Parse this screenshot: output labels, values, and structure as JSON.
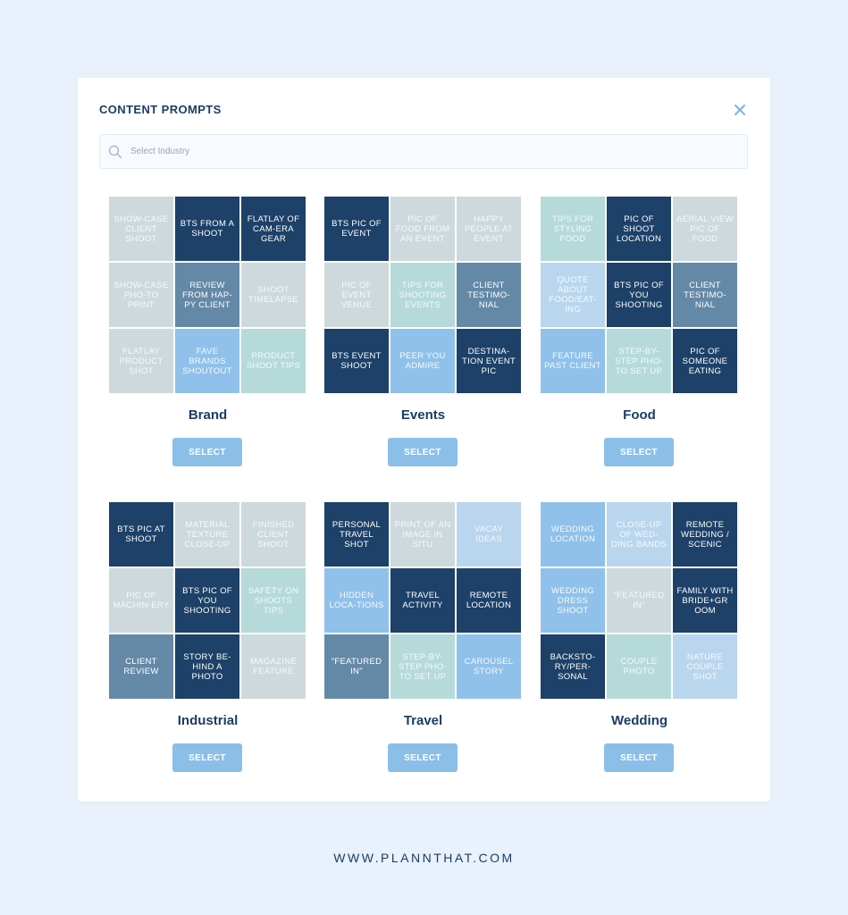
{
  "modal": {
    "title": "CONTENT PROMPTS",
    "close_icon": "close-icon"
  },
  "search": {
    "placeholder": "Select Industry",
    "value": "",
    "icon": "search-icon"
  },
  "colors": {
    "navy": "#1d4168",
    "slate": "#6489a7",
    "sky": "#8fc1ea",
    "pale_blue": "#b9d6ee",
    "mint": "#b5dad9",
    "gray": "#ced9dd",
    "title_text": "#1c3d63",
    "button": "#8bbfe8",
    "background": "#e8f1fc"
  },
  "industries": [
    {
      "name": "Brand",
      "select_label": "SELECT",
      "prompts": [
        {
          "text": "SHOW-CASE CLIENT SHOOT",
          "tone": "gray"
        },
        {
          "text": "BTS FROM A SHOOT",
          "tone": "navy"
        },
        {
          "text": "FLATLAY OF CAM-ERA GEAR",
          "tone": "navy"
        },
        {
          "text": "SHOW-CASE PHO-TO PRINT",
          "tone": "gray"
        },
        {
          "text": "REVIEW FROM HAP-PY CLIENT",
          "tone": "slate"
        },
        {
          "text": "SHOOT TIMELAPSE",
          "tone": "gray"
        },
        {
          "text": "FLATLAY PRODUCT SHOT",
          "tone": "gray"
        },
        {
          "text": "FAVE BRANDS SHOUTOUT",
          "tone": "sky"
        },
        {
          "text": "PRODUCT SHOOT TIPS",
          "tone": "mint"
        }
      ]
    },
    {
      "name": "Events",
      "select_label": "SELECT",
      "prompts": [
        {
          "text": "BTS PIC OF EVENT",
          "tone": "navy"
        },
        {
          "text": "PIC OF FOOD FROM AN EVENT",
          "tone": "gray"
        },
        {
          "text": "HAPPY PEOPLE AT EVENT",
          "tone": "gray"
        },
        {
          "text": "PIC OF EVENT VENUE",
          "tone": "gray"
        },
        {
          "text": "TIPS FOR SHOOTING EVENTS",
          "tone": "mint"
        },
        {
          "text": "CLIENT TESTIMO-NIAL",
          "tone": "slate"
        },
        {
          "text": "BTS EVENT SHOOT",
          "tone": "navy"
        },
        {
          "text": "PEER YOU ADMIRE",
          "tone": "sky"
        },
        {
          "text": "DESTINA-TION EVENT PIC",
          "tone": "navy"
        }
      ]
    },
    {
      "name": "Food",
      "select_label": "SELECT",
      "prompts": [
        {
          "text": "TIPS FOR STYLING FOOD",
          "tone": "mint"
        },
        {
          "text": "PIC OF SHOOT LOCATION",
          "tone": "navy"
        },
        {
          "text": "AERIAL VIEW PIC OF FOOD",
          "tone": "gray"
        },
        {
          "text": "QUOTE ABOUT FOOD/EAT-ING",
          "tone": "pale_blue"
        },
        {
          "text": "BTS PIC OF YOU SHOOTING",
          "tone": "navy"
        },
        {
          "text": "CLIENT TESTIMO-NIAL",
          "tone": "slate"
        },
        {
          "text": "FEATURE PAST CLIENT",
          "tone": "sky"
        },
        {
          "text": "STEP-BY-STEP PHO-TO SET UP",
          "tone": "mint"
        },
        {
          "text": "PIC OF SOMEONE EATING",
          "tone": "navy"
        }
      ]
    },
    {
      "name": "Industrial",
      "select_label": "SELECT",
      "prompts": [
        {
          "text": "BTS PIC AT SHOOT",
          "tone": "navy"
        },
        {
          "text": "MATERIAL TEXTURE CLOSE-UP",
          "tone": "gray"
        },
        {
          "text": "FINISHED CLIENT SHOOT",
          "tone": "gray"
        },
        {
          "text": "PIC OF MACHIN-ERY",
          "tone": "gray"
        },
        {
          "text": "BTS PIC OF YOU SHOOTING",
          "tone": "navy"
        },
        {
          "text": "SAFETY ON SHOOTS TIPS",
          "tone": "mint"
        },
        {
          "text": "CLIENT REVIEW",
          "tone": "slate"
        },
        {
          "text": "STORY BE-HIND A PHOTO",
          "tone": "navy"
        },
        {
          "text": "MAGAZINE FEATURE",
          "tone": "gray"
        }
      ]
    },
    {
      "name": "Travel",
      "select_label": "SELECT",
      "prompts": [
        {
          "text": "PERSONAL TRAVEL SHOT",
          "tone": "navy"
        },
        {
          "text": "PRINT OF AN IMAGE IN SITU",
          "tone": "gray"
        },
        {
          "text": "VACAY IDEAS",
          "tone": "pale_blue"
        },
        {
          "text": "HIDDEN LOCA-TIONS",
          "tone": "sky"
        },
        {
          "text": "TRAVEL ACTIVITY",
          "tone": "navy"
        },
        {
          "text": "REMOTE LOCATION",
          "tone": "navy"
        },
        {
          "text": "\"FEATURED IN\"",
          "tone": "slate"
        },
        {
          "text": "STEP-BY-STEP PHO-TO SET UP",
          "tone": "mint"
        },
        {
          "text": "CAROUSEL STORY",
          "tone": "sky"
        }
      ]
    },
    {
      "name": "Wedding",
      "select_label": "SELECT",
      "prompts": [
        {
          "text": "WEDDING LOCATION",
          "tone": "sky"
        },
        {
          "text": "CLOSE-UP OF WED-DING BANDS",
          "tone": "pale_blue"
        },
        {
          "text": "REMOTE WEDDING / SCENIC",
          "tone": "navy"
        },
        {
          "text": "WEDDING DRESS SHOOT",
          "tone": "sky"
        },
        {
          "text": "\"FEATURED IN\"",
          "tone": "gray"
        },
        {
          "text": "FAMILY WITH BRIDE+GR OOM",
          "tone": "navy"
        },
        {
          "text": "BACKSTO-RY/PER-SONAL",
          "tone": "navy"
        },
        {
          "text": "COUPLE PHOTO",
          "tone": "mint"
        },
        {
          "text": "NATURE COUPLE SHOT",
          "tone": "pale_blue"
        }
      ]
    }
  ],
  "footer": {
    "url": "WWW.PLANNTHAT.COM"
  }
}
